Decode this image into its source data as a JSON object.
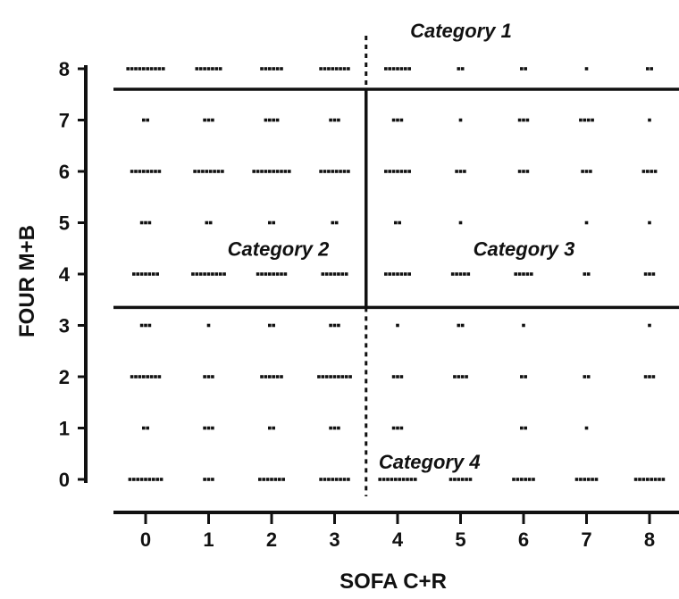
{
  "chart_data": {
    "type": "scatter",
    "xlabel": "SOFA  C+R",
    "ylabel": "FOUR M+B",
    "xlim": [
      -0.5,
      8.5
    ],
    "ylim": [
      0,
      8
    ],
    "x_ticks": [
      "0",
      "1",
      "2",
      "3",
      "4",
      "5",
      "6",
      "7",
      "8"
    ],
    "y_ticks": [
      "0",
      "1",
      "2",
      "3",
      "4",
      "5",
      "6",
      "7",
      "8"
    ],
    "grid": false,
    "legend": "none",
    "point_color": "#111111",
    "points": [
      {
        "x": 0,
        "y": 8,
        "count": 10
      },
      {
        "x": 1,
        "y": 8,
        "count": 7
      },
      {
        "x": 2,
        "y": 8,
        "count": 6
      },
      {
        "x": 3,
        "y": 8,
        "count": 8
      },
      {
        "x": 4,
        "y": 8,
        "count": 7
      },
      {
        "x": 5,
        "y": 8,
        "count": 2
      },
      {
        "x": 6,
        "y": 8,
        "count": 2
      },
      {
        "x": 7,
        "y": 8,
        "count": 1
      },
      {
        "x": 8,
        "y": 8,
        "count": 2
      },
      {
        "x": 0,
        "y": 7,
        "count": 2
      },
      {
        "x": 1,
        "y": 7,
        "count": 3
      },
      {
        "x": 2,
        "y": 7,
        "count": 4
      },
      {
        "x": 3,
        "y": 7,
        "count": 3
      },
      {
        "x": 4,
        "y": 7,
        "count": 3
      },
      {
        "x": 5,
        "y": 7,
        "count": 1
      },
      {
        "x": 6,
        "y": 7,
        "count": 3
      },
      {
        "x": 7,
        "y": 7,
        "count": 4
      },
      {
        "x": 8,
        "y": 7,
        "count": 1
      },
      {
        "x": 0,
        "y": 6,
        "count": 8
      },
      {
        "x": 1,
        "y": 6,
        "count": 8
      },
      {
        "x": 2,
        "y": 6,
        "count": 10
      },
      {
        "x": 3,
        "y": 6,
        "count": 8
      },
      {
        "x": 4,
        "y": 6,
        "count": 7
      },
      {
        "x": 5,
        "y": 6,
        "count": 3
      },
      {
        "x": 6,
        "y": 6,
        "count": 3
      },
      {
        "x": 7,
        "y": 6,
        "count": 3
      },
      {
        "x": 8,
        "y": 6,
        "count": 4
      },
      {
        "x": 0,
        "y": 5,
        "count": 3
      },
      {
        "x": 1,
        "y": 5,
        "count": 2
      },
      {
        "x": 2,
        "y": 5,
        "count": 2
      },
      {
        "x": 3,
        "y": 5,
        "count": 2
      },
      {
        "x": 4,
        "y": 5,
        "count": 2
      },
      {
        "x": 5,
        "y": 5,
        "count": 1
      },
      {
        "x": 7,
        "y": 5,
        "count": 1
      },
      {
        "x": 8,
        "y": 5,
        "count": 1
      },
      {
        "x": 0,
        "y": 4,
        "count": 7
      },
      {
        "x": 1,
        "y": 4,
        "count": 9
      },
      {
        "x": 2,
        "y": 4,
        "count": 8
      },
      {
        "x": 3,
        "y": 4,
        "count": 7
      },
      {
        "x": 4,
        "y": 4,
        "count": 7
      },
      {
        "x": 5,
        "y": 4,
        "count": 5
      },
      {
        "x": 6,
        "y": 4,
        "count": 5
      },
      {
        "x": 7,
        "y": 4,
        "count": 2
      },
      {
        "x": 8,
        "y": 4,
        "count": 3
      },
      {
        "x": 0,
        "y": 3,
        "count": 3
      },
      {
        "x": 1,
        "y": 3,
        "count": 1
      },
      {
        "x": 2,
        "y": 3,
        "count": 2
      },
      {
        "x": 3,
        "y": 3,
        "count": 3
      },
      {
        "x": 4,
        "y": 3,
        "count": 1
      },
      {
        "x": 5,
        "y": 3,
        "count": 2
      },
      {
        "x": 6,
        "y": 3,
        "count": 1
      },
      {
        "x": 8,
        "y": 3,
        "count": 1
      },
      {
        "x": 0,
        "y": 2,
        "count": 8
      },
      {
        "x": 1,
        "y": 2,
        "count": 3
      },
      {
        "x": 2,
        "y": 2,
        "count": 6
      },
      {
        "x": 3,
        "y": 2,
        "count": 9
      },
      {
        "x": 4,
        "y": 2,
        "count": 3
      },
      {
        "x": 5,
        "y": 2,
        "count": 4
      },
      {
        "x": 6,
        "y": 2,
        "count": 2
      },
      {
        "x": 7,
        "y": 2,
        "count": 2
      },
      {
        "x": 8,
        "y": 2,
        "count": 3
      },
      {
        "x": 0,
        "y": 1,
        "count": 2
      },
      {
        "x": 1,
        "y": 1,
        "count": 3
      },
      {
        "x": 2,
        "y": 1,
        "count": 2
      },
      {
        "x": 3,
        "y": 1,
        "count": 3
      },
      {
        "x": 4,
        "y": 1,
        "count": 3
      },
      {
        "x": 6,
        "y": 1,
        "count": 2
      },
      {
        "x": 7,
        "y": 1,
        "count": 1
      },
      {
        "x": 0,
        "y": 0,
        "count": 9
      },
      {
        "x": 1,
        "y": 0,
        "count": 3
      },
      {
        "x": 2,
        "y": 0,
        "count": 7
      },
      {
        "x": 3,
        "y": 0,
        "count": 8
      },
      {
        "x": 4,
        "y": 0,
        "count": 10
      },
      {
        "x": 5,
        "y": 0,
        "count": 6
      },
      {
        "x": 6,
        "y": 0,
        "count": 6
      },
      {
        "x": 7,
        "y": 0,
        "count": 6
      },
      {
        "x": 8,
        "y": 0,
        "count": 8
      }
    ],
    "dividers": {
      "vertical_x": 3.5,
      "horizontal_y": [
        3.35,
        7.6
      ]
    },
    "annotations": [
      {
        "text": "Category 1",
        "x": 4.2,
        "y": 8.75
      },
      {
        "text": "Category 2",
        "x": 1.3,
        "y": 4.5
      },
      {
        "text": "Category 3",
        "x": 5.2,
        "y": 4.5
      },
      {
        "text": "Category 4",
        "x": 3.7,
        "y": 0.35
      }
    ]
  }
}
